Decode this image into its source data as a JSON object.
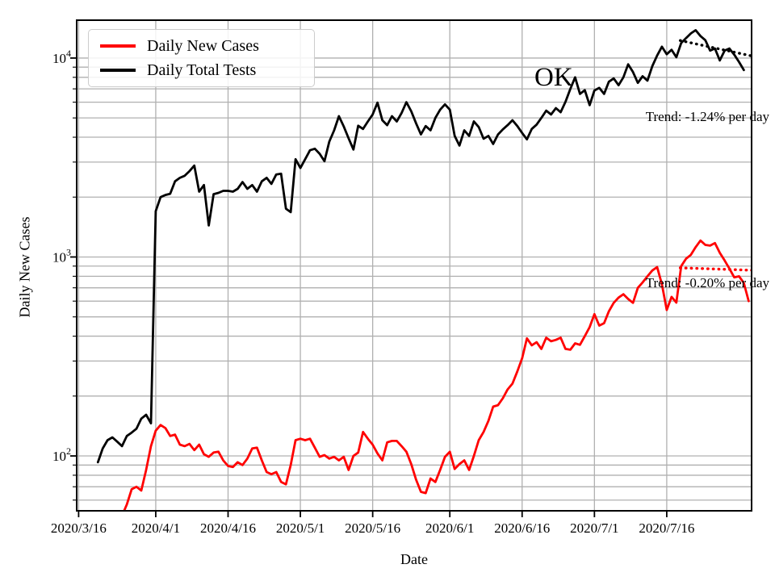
{
  "figure": {
    "ok_annotation": "OK",
    "xlabel": "Date",
    "ylabel": "Daily New Cases"
  },
  "legend": {
    "items": [
      {
        "label": "Daily New Cases",
        "color": "#ff0000"
      },
      {
        "label": "Daily Total Tests",
        "color": "#000000"
      }
    ]
  },
  "trend_labels": {
    "tests": "Trend: -1.24% per day",
    "cases": "Trend: -0.20% per day"
  },
  "chart_data": {
    "type": "line",
    "title": "OK",
    "xlabel": "Date",
    "ylabel": "Daily New Cases",
    "grid": true,
    "legend_position": "upper left",
    "x_axis": {
      "unit": "day",
      "day0_date": "2020/3/16",
      "min_day": -0.4,
      "max_day": 139.6,
      "ticks": [
        {
          "day": 0,
          "label": "2020/3/16"
        },
        {
          "day": 16,
          "label": "2020/4/1"
        },
        {
          "day": 31,
          "label": "2020/4/16"
        },
        {
          "day": 46,
          "label": "2020/5/1"
        },
        {
          "day": 61,
          "label": "2020/5/16"
        },
        {
          "day": 77,
          "label": "2020/6/1"
        },
        {
          "day": 92,
          "label": "2020/6/16"
        },
        {
          "day": 107,
          "label": "2020/7/1"
        },
        {
          "day": 122,
          "label": "2020/7/16"
        }
      ]
    },
    "y_axis": {
      "scale": "log",
      "min": 53,
      "max": 15500,
      "major_tick_values": [
        100,
        1000,
        10000
      ],
      "gridline_values": [
        60,
        70,
        80,
        90,
        100,
        200,
        300,
        400,
        500,
        600,
        700,
        800,
        900,
        1000,
        2000,
        3000,
        4000,
        5000,
        6000,
        7000,
        8000,
        9000,
        10000
      ]
    },
    "series": [
      {
        "name": "Daily Total Tests",
        "color": "#000000",
        "start_day": 4,
        "daily_values": [
          93,
          109,
          120,
          124,
          118,
          112,
          126,
          131,
          137,
          154,
          161,
          146,
          1700,
          2000,
          2050,
          2080,
          2400,
          2500,
          2560,
          2700,
          2880,
          2130,
          2300,
          1440,
          2070,
          2100,
          2150,
          2150,
          2130,
          2200,
          2380,
          2200,
          2300,
          2130,
          2400,
          2500,
          2330,
          2600,
          2620,
          1750,
          1680,
          3100,
          2800,
          3100,
          3440,
          3500,
          3300,
          3030,
          3800,
          4330,
          5100,
          4530,
          3950,
          3470,
          4570,
          4400,
          4800,
          5200,
          5970,
          4870,
          4600,
          5100,
          4800,
          5300,
          6000,
          5400,
          4700,
          4130,
          4550,
          4330,
          5000,
          5500,
          5850,
          5500,
          4060,
          3630,
          4330,
          4060,
          4800,
          4500,
          3930,
          4060,
          3700,
          4130,
          4380,
          4600,
          4870,
          4550,
          4200,
          3900,
          4400,
          4630,
          5000,
          5440,
          5200,
          5600,
          5340,
          6030,
          7000,
          8000,
          6600,
          6900,
          5800,
          6870,
          7080,
          6600,
          7600,
          7900,
          7300,
          8000,
          9300,
          8500,
          7500,
          8100,
          7700,
          9100,
          10300,
          11400,
          10450,
          11000,
          10100,
          11900,
          12600,
          13300,
          13800,
          12900,
          12300,
          10900,
          11170,
          9730,
          10900,
          11170,
          10400,
          9550,
          8700
        ]
      },
      {
        "name": "Daily New Cases",
        "color": "#ff0000",
        "start_day": 9,
        "daily_values": [
          50,
          57,
          68,
          70,
          67,
          85,
          112,
          134,
          143,
          138,
          126,
          128,
          114,
          112,
          115,
          107,
          114,
          102,
          99,
          104,
          105,
          95,
          89,
          88,
          93,
          90,
          97,
          109,
          110,
          95,
          83,
          81,
          83,
          74,
          72,
          90,
          120,
          122,
          120,
          122,
          110,
          99,
          101,
          97,
          99,
          95,
          99,
          85,
          100,
          104,
          132,
          122,
          114,
          103,
          95,
          117,
          119,
          119,
          112,
          105,
          91,
          76,
          66,
          65,
          77,
          74,
          85,
          99,
          105,
          86,
          91,
          95,
          85,
          100,
          120,
          132,
          150,
          177,
          180,
          195,
          216,
          231,
          266,
          310,
          390,
          360,
          373,
          345,
          393,
          377,
          383,
          393,
          345,
          342,
          368,
          362,
          400,
          444,
          516,
          452,
          465,
          533,
          588,
          625,
          650,
          615,
          588,
          700,
          745,
          800,
          855,
          890,
          730,
          542,
          630,
          590,
          900,
          980,
          1025,
          1120,
          1210,
          1150,
          1140,
          1175,
          1050,
          960,
          875,
          790,
          800,
          740,
          600
        ]
      }
    ],
    "trend_lines": [
      {
        "series": "Daily Total Tests",
        "label": "Trend: -1.24% per day",
        "rate_per_day_pct": -1.24,
        "color": "#000000",
        "start_day": 124.8,
        "end_day": 139.6,
        "start_value": 12250,
        "end_value": 10250
      },
      {
        "series": "Daily New Cases",
        "label": "Trend: -0.20% per day",
        "rate_per_day_pct": -0.2,
        "color": "#ff0000",
        "start_day": 124.8,
        "end_day": 139.6,
        "start_value": 882,
        "end_value": 858
      }
    ],
    "annotations": [
      {
        "text": "OK",
        "day": 100,
        "value": 7700
      }
    ]
  }
}
